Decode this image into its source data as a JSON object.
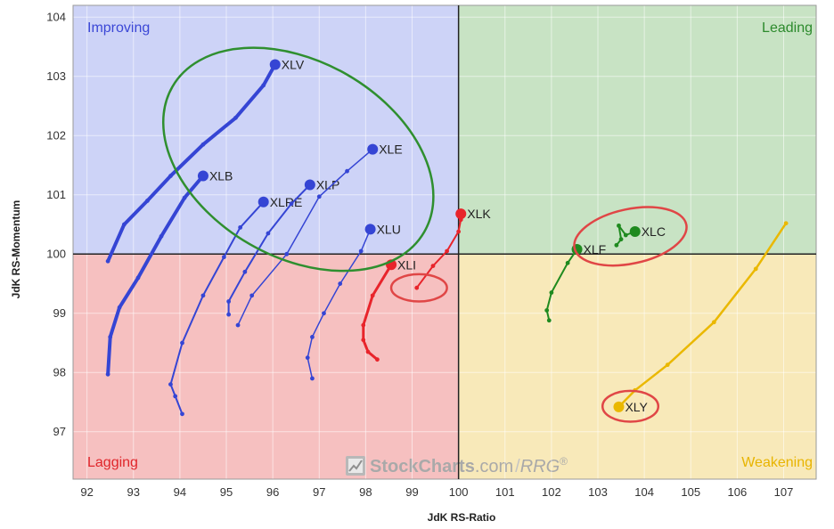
{
  "chart_data": {
    "type": "scatter",
    "title": "",
    "xlabel": "JdK RS-Ratio",
    "ylabel": "JdK RS-Momentum",
    "xlim": [
      91.7,
      107.7
    ],
    "ylim": [
      96.2,
      104.2
    ],
    "center": [
      100,
      100
    ],
    "x_ticks": [
      92,
      93,
      94,
      95,
      96,
      97,
      98,
      99,
      100,
      101,
      102,
      103,
      104,
      105,
      106,
      107
    ],
    "y_ticks": [
      97,
      98,
      99,
      100,
      101,
      102,
      103,
      104
    ],
    "quadrants": [
      {
        "name": "Improving",
        "position": "top-left",
        "fill": "#cdd3f7",
        "color": "#3b47d6"
      },
      {
        "name": "Leading",
        "position": "top-right",
        "fill": "#c8e3c4",
        "color": "#2c8a2c"
      },
      {
        "name": "Lagging",
        "position": "bottom-left",
        "fill": "#f6c0c0",
        "color": "#e0262b"
      },
      {
        "name": "Weakening",
        "position": "bottom-right",
        "fill": "#f8e9b9",
        "color": "#e8b400"
      }
    ],
    "series": [
      {
        "name": "XLV",
        "color": "#3545d4",
        "width": 4,
        "x": [
          92.45,
          92.8,
          93.3,
          93.8,
          94.5,
          95.2,
          95.8,
          96.05
        ],
        "y": [
          99.88,
          100.5,
          100.9,
          101.32,
          101.85,
          102.3,
          102.85,
          103.2
        ]
      },
      {
        "name": "XLB",
        "color": "#3545d4",
        "width": 4,
        "x": [
          92.45,
          92.5,
          92.7,
          93.1,
          93.6,
          94.1,
          94.5
        ],
        "y": [
          97.97,
          98.6,
          99.1,
          99.6,
          100.3,
          100.95,
          101.32
        ]
      },
      {
        "name": "XLRE",
        "color": "#3545d4",
        "width": 2,
        "x": [
          94.05,
          93.9,
          93.8,
          94.05,
          94.5,
          94.95,
          95.3,
          95.8
        ],
        "y": [
          97.3,
          97.6,
          97.8,
          98.5,
          99.3,
          99.95,
          100.45,
          100.88
        ]
      },
      {
        "name": "XLP",
        "color": "#3545d4",
        "width": 2,
        "x": [
          95.05,
          95.05,
          95.4,
          95.9,
          96.4,
          96.8
        ],
        "y": [
          98.98,
          99.2,
          99.7,
          100.35,
          100.85,
          101.17
        ]
      },
      {
        "name": "XLE",
        "color": "#3545d4",
        "width": 1.5,
        "x": [
          95.25,
          95.55,
          96.3,
          97.0,
          97.6,
          98.15
        ],
        "y": [
          98.8,
          99.3,
          100.0,
          100.97,
          101.4,
          101.77
        ]
      },
      {
        "name": "XLU",
        "color": "#3545d4",
        "width": 1.5,
        "x": [
          96.85,
          96.75,
          96.85,
          97.1,
          97.45,
          97.9,
          98.1
        ],
        "y": [
          97.9,
          98.25,
          98.6,
          99.0,
          99.5,
          100.05,
          100.42
        ]
      },
      {
        "name": "XLI",
        "color": "#e8242b",
        "width": 3,
        "x": [
          98.25,
          98.05,
          97.95,
          97.95,
          98.15,
          98.55
        ],
        "y": [
          98.22,
          98.35,
          98.55,
          98.8,
          99.3,
          99.82
        ]
      },
      {
        "name": "XLK",
        "color": "#e8242b",
        "width": 2,
        "x": [
          99.1,
          99.45,
          99.75,
          100.0,
          100.05,
          100.05
        ],
        "y": [
          99.43,
          99.8,
          100.05,
          100.38,
          100.58,
          100.68
        ]
      },
      {
        "name": "XLF",
        "color": "#1f8a1f",
        "width": 2,
        "x": [
          101.95,
          101.9,
          102.0,
          102.35,
          102.55
        ],
        "y": [
          98.88,
          99.05,
          99.35,
          99.85,
          100.08
        ]
      },
      {
        "name": "XLC",
        "color": "#1f8a1f",
        "width": 2,
        "x": [
          103.4,
          103.5,
          103.45,
          103.6,
          103.8
        ],
        "y": [
          100.15,
          100.25,
          100.48,
          100.32,
          100.38
        ]
      },
      {
        "name": "XLY",
        "color": "#eab800",
        "width": 2.5,
        "x": [
          107.05,
          106.4,
          105.5,
          104.5,
          103.8,
          103.45
        ],
        "y": [
          100.52,
          99.75,
          98.85,
          98.13,
          97.7,
          97.42
        ]
      }
    ],
    "highlights": [
      {
        "type": "ellipse",
        "color": "#2f8f2f",
        "cx": 96.55,
        "cy": 101.6,
        "rx": 3.13,
        "ry": 1.65,
        "rotate": 30
      },
      {
        "type": "ellipse",
        "color": "#e04646",
        "cx": 103.7,
        "cy": 100.3,
        "rx": 1.23,
        "ry": 0.46,
        "rotate": -12
      },
      {
        "type": "ellipse",
        "color": "#e04646",
        "cx": 99.15,
        "cy": 99.43,
        "rx": 0.6,
        "ry": 0.23,
        "rotate": 0
      },
      {
        "type": "ellipse",
        "color": "#e04646",
        "cx": 103.7,
        "cy": 97.43,
        "rx": 0.6,
        "ry": 0.26,
        "rotate": 0
      }
    ]
  },
  "watermark": {
    "brand": "StockCharts",
    "domain": ".com",
    "separator": "/",
    "product": "RRG",
    "registered": "®"
  }
}
